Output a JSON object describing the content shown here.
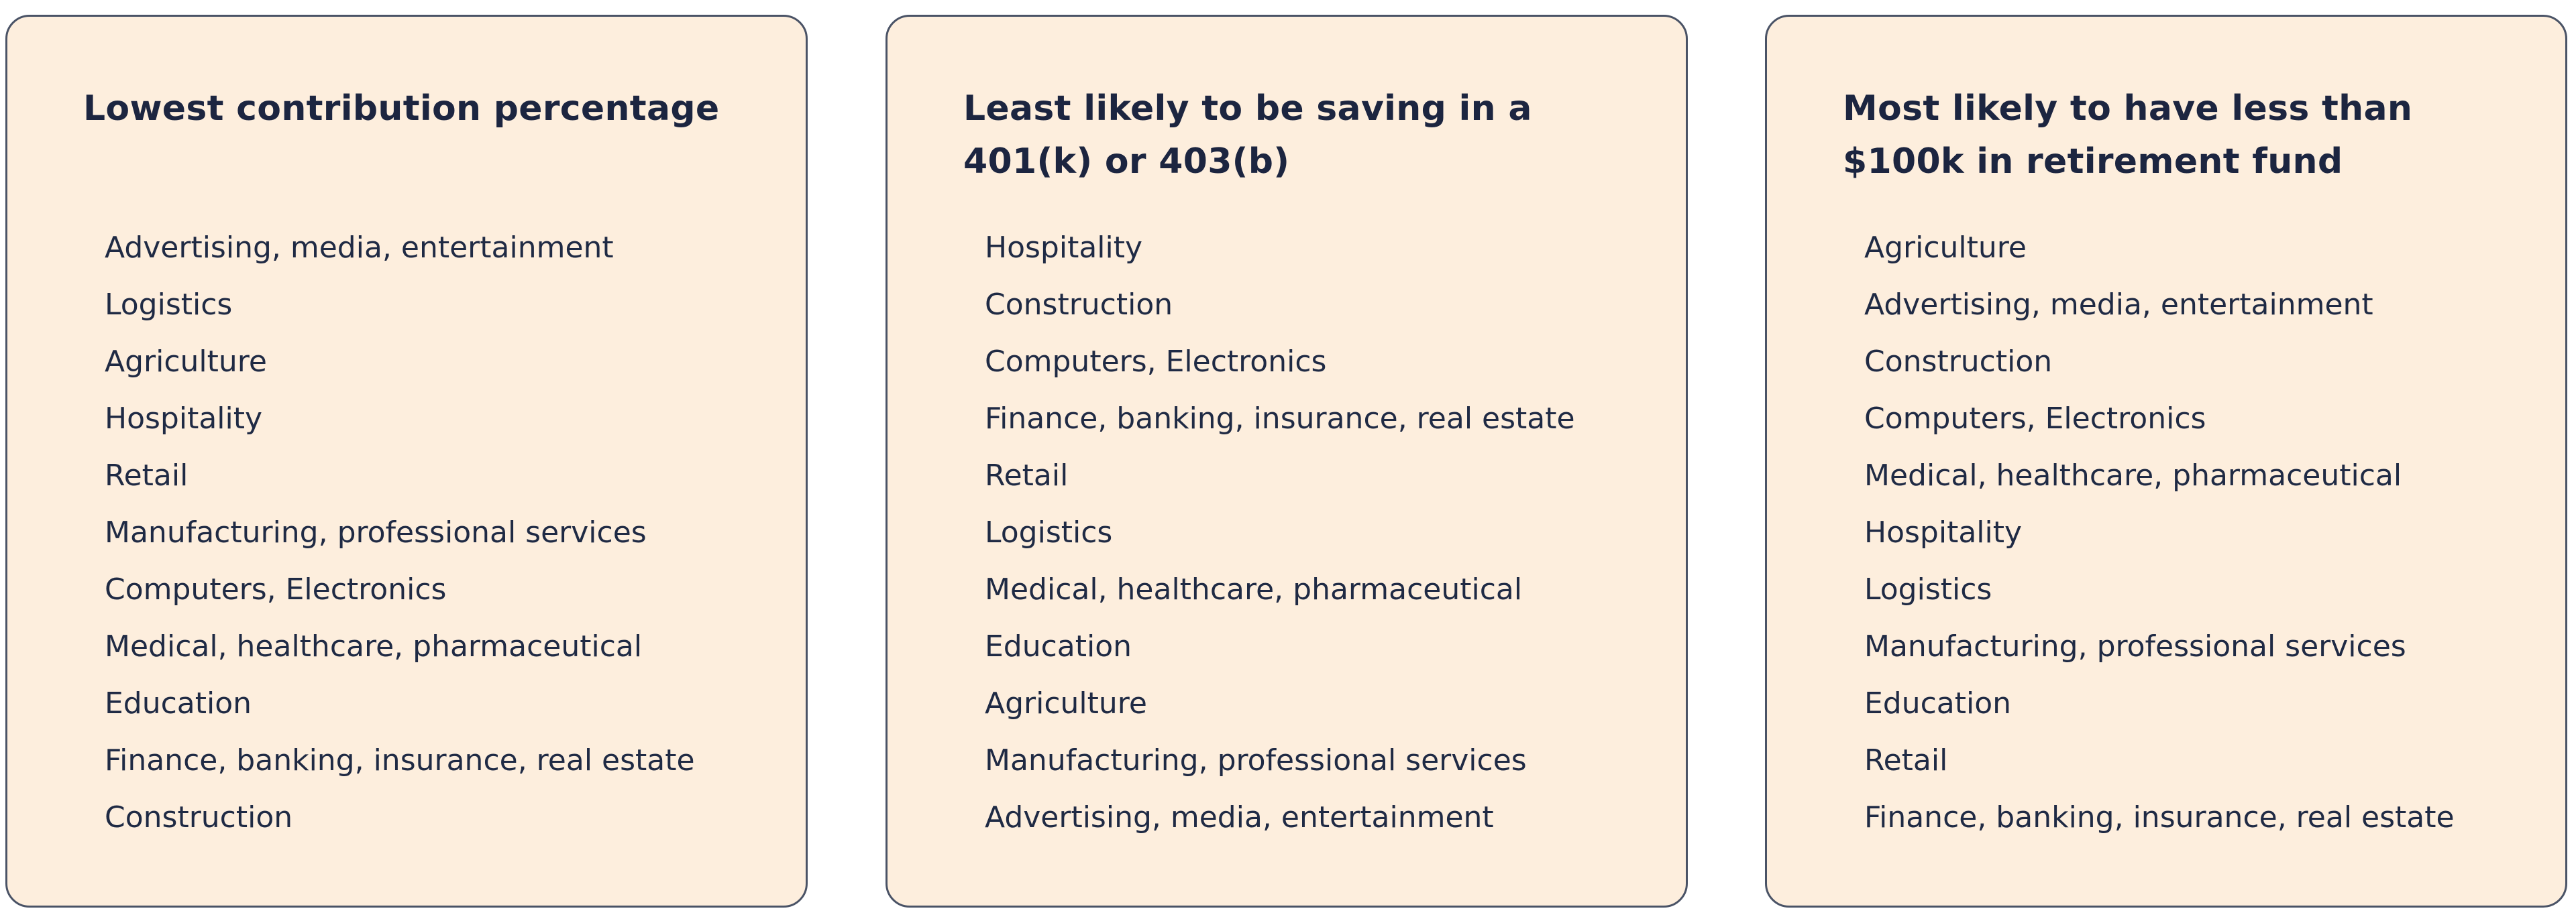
{
  "cards": [
    {
      "title": "Lowest contribution percentage",
      "items": [
        "Advertising, media, entertainment",
        "Logistics",
        "Agriculture",
        "Hospitality",
        "Retail",
        "Manufacturing, professional services",
        "Computers, Electronics",
        "Medical, healthcare, pharmaceutical",
        "Education",
        "Finance, banking, insurance, real estate",
        "Construction"
      ]
    },
    {
      "title": "Least likely to be saving in a 401(k) or 403(b)",
      "items": [
        "Hospitality",
        "Construction",
        "Computers, Electronics",
        "Finance, banking, insurance, real estate",
        "Retail",
        "Logistics",
        "Medical, healthcare, pharmaceutical",
        "Education",
        "Agriculture",
        "Manufacturing, professional services",
        "Advertising, media, entertainment"
      ]
    },
    {
      "title": "Most likely to have less than $100k in retirement fund",
      "items": [
        "Agriculture",
        "Advertising, media, entertainment",
        "Construction",
        "Computers, Electronics",
        "Medical, healthcare, pharmaceutical",
        "Hospitality",
        "Logistics",
        "Manufacturing, professional services",
        "Education",
        "Retail",
        "Finance, banking, insurance, real estate"
      ]
    }
  ],
  "colors": {
    "card_background": "#fdeedd",
    "card_border": "#4a5366",
    "text": "#1f2a44"
  }
}
